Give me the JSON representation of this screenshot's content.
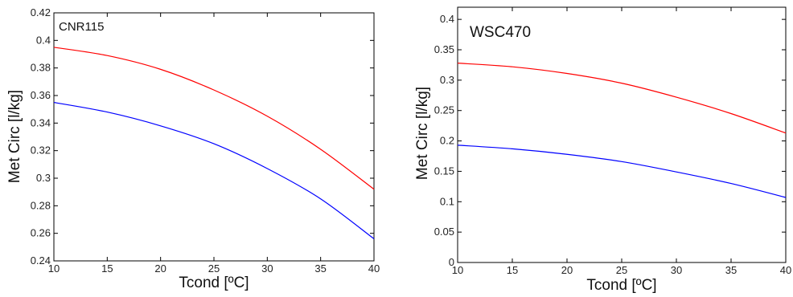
{
  "chart_data": [
    {
      "type": "line",
      "title": "",
      "annotation": "CNR115",
      "xlabel": "Tcond [ºC]",
      "ylabel": "Met Circ [l/kg]",
      "xlim": [
        10,
        40
      ],
      "ylim": [
        0.24,
        0.42
      ],
      "xticks": [
        10,
        15,
        20,
        25,
        30,
        35,
        40
      ],
      "yticks": [
        0.24,
        0.26,
        0.28,
        0.3,
        0.32,
        0.34,
        0.36,
        0.38,
        0.4,
        0.42
      ],
      "ytick_labels": [
        "0.24",
        "0.26",
        "0.28",
        "0.3",
        "0.32",
        "0.34",
        "0.36",
        "0.38",
        "0.4",
        "0.42"
      ],
      "grid": false,
      "series": [
        {
          "color": "#ff0000",
          "x": [
            10,
            15,
            20,
            25,
            30,
            35,
            40
          ],
          "y": [
            0.395,
            0.389,
            0.379,
            0.364,
            0.345,
            0.321,
            0.292
          ]
        },
        {
          "color": "#0000ff",
          "x": [
            10,
            15,
            20,
            25,
            30,
            35,
            40
          ],
          "y": [
            0.355,
            0.348,
            0.338,
            0.325,
            0.307,
            0.285,
            0.256
          ]
        }
      ]
    },
    {
      "type": "line",
      "title": "",
      "annotation": "WSC470",
      "xlabel": "Tcond [ºC]",
      "ylabel": "Met Circ [l/kg]",
      "xlim": [
        10,
        40
      ],
      "ylim": [
        0,
        0.42
      ],
      "xticks": [
        10,
        15,
        20,
        25,
        30,
        35,
        40
      ],
      "yticks": [
        0,
        0.05,
        0.1,
        0.15,
        0.2,
        0.25,
        0.3,
        0.35,
        0.4
      ],
      "ytick_labels": [
        "0",
        "0.05",
        "0.1",
        "0.15",
        "0.2",
        "0.25",
        "0.3",
        "0.35",
        "0.4"
      ],
      "grid": false,
      "series": [
        {
          "color": "#ff0000",
          "x": [
            10,
            15,
            20,
            25,
            30,
            35,
            40
          ],
          "y": [
            0.328,
            0.322,
            0.311,
            0.295,
            0.272,
            0.245,
            0.213
          ]
        },
        {
          "color": "#0000ff",
          "x": [
            10,
            15,
            20,
            25,
            30,
            35,
            40
          ],
          "y": [
            0.193,
            0.187,
            0.178,
            0.166,
            0.149,
            0.13,
            0.107
          ]
        }
      ]
    }
  ]
}
